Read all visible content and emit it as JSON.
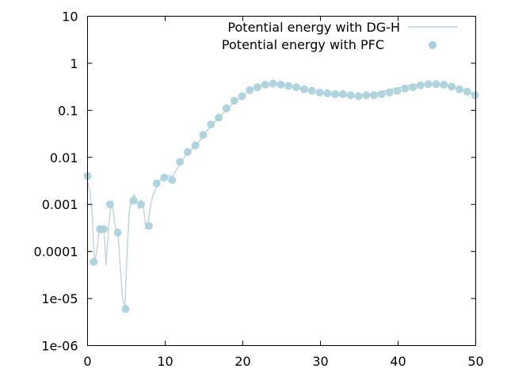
{
  "chart_data": {
    "type": "line",
    "title": "",
    "xlabel": "",
    "ylabel": "",
    "xlim": [
      0,
      50
    ],
    "ylim": [
      1e-06,
      10
    ],
    "yscale": "log",
    "grid": false,
    "legend_position": "top-right",
    "x_ticks": [
      0,
      10,
      20,
      30,
      40,
      50
    ],
    "x_tick_labels": [
      "0",
      "10",
      "20",
      "30",
      "40",
      "50"
    ],
    "y_ticks": [
      1e-06,
      1e-05,
      0.0001,
      0.001,
      0.01,
      0.1,
      1,
      10
    ],
    "y_tick_labels": [
      "1e-06",
      "1e-05",
      "0.0001",
      "0.001",
      "0.01",
      "0.1",
      "1",
      "10"
    ],
    "series": [
      {
        "name": "Potential energy with DG-H",
        "style": "line",
        "color": "#c8d4dc",
        "x": [
          0,
          0.3,
          0.6,
          0.9,
          1.2,
          1.5,
          1.8,
          2.1,
          2.4,
          2.7,
          3.0,
          3.3,
          3.6,
          3.9,
          4.2,
          4.5,
          4.8,
          5.1,
          5.4,
          5.7,
          6.0,
          6.3,
          6.6,
          6.9,
          7.2,
          7.5,
          7.8,
          8.1,
          8.4,
          8.7,
          9.0,
          9.5,
          10,
          11,
          12,
          13,
          14,
          15,
          16,
          17,
          18,
          19,
          20,
          21,
          22,
          23,
          24,
          25,
          26,
          27,
          28,
          29,
          30,
          31,
          32,
          33,
          34,
          35,
          36,
          37,
          38,
          39,
          40,
          41,
          42,
          43,
          44,
          45,
          46,
          47,
          48,
          49,
          50
        ],
        "y": [
          0.003,
          0.002,
          0.0006,
          6e-05,
          0.0001,
          0.0003,
          0.00025,
          0.0003,
          5e-05,
          0.0003,
          0.0009,
          0.0008,
          0.0003,
          0.0003,
          5e-05,
          1e-05,
          6e-06,
          0.0001,
          0.0008,
          0.0013,
          0.0016,
          0.0013,
          0.0008,
          0.0012,
          0.0009,
          0.0003,
          0.0004,
          0.0009,
          0.0015,
          0.002,
          0.0025,
          0.0035,
          0.004,
          0.004,
          0.008,
          0.013,
          0.018,
          0.03,
          0.05,
          0.07,
          0.11,
          0.15,
          0.2,
          0.28,
          0.33,
          0.36,
          0.37,
          0.36,
          0.33,
          0.3,
          0.27,
          0.25,
          0.23,
          0.22,
          0.21,
          0.21,
          0.2,
          0.2,
          0.21,
          0.23,
          0.25,
          0.28,
          0.3,
          0.33,
          0.35,
          0.36,
          0.37,
          0.36,
          0.34,
          0.31,
          0.28,
          0.24,
          0.21
        ]
      },
      {
        "name": "Potential energy with PFC",
        "style": "points",
        "color": "#a8d0dc",
        "x": [
          0,
          0.8,
          1.6,
          2.1,
          2.9,
          3.9,
          4.9,
          5.9,
          6.9,
          7.9,
          8.9,
          9.9,
          10.9,
          11.9,
          12.9,
          13.9,
          14.9,
          15.9,
          16.9,
          17.9,
          18.9,
          19.9,
          20.9,
          21.9,
          22.9,
          23.9,
          24.9,
          25.9,
          26.9,
          27.9,
          28.9,
          29.9,
          30.9,
          31.9,
          32.9,
          33.9,
          34.9,
          35.9,
          36.9,
          37.9,
          38.9,
          39.9,
          40.9,
          41.9,
          42.9,
          43.9,
          44.9,
          45.9,
          46.9,
          47.9,
          48.9,
          49.9
        ],
        "y": [
          0.004,
          6e-05,
          0.0003,
          0.0003,
          0.001,
          0.00025,
          6e-06,
          0.0012,
          0.001,
          0.00035,
          0.0028,
          0.0037,
          0.0033,
          0.008,
          0.013,
          0.018,
          0.03,
          0.05,
          0.07,
          0.11,
          0.16,
          0.2,
          0.27,
          0.31,
          0.35,
          0.37,
          0.35,
          0.33,
          0.31,
          0.28,
          0.26,
          0.24,
          0.23,
          0.22,
          0.22,
          0.21,
          0.2,
          0.21,
          0.21,
          0.22,
          0.24,
          0.26,
          0.29,
          0.31,
          0.34,
          0.36,
          0.36,
          0.35,
          0.32,
          0.28,
          0.25,
          0.21
        ]
      }
    ]
  }
}
